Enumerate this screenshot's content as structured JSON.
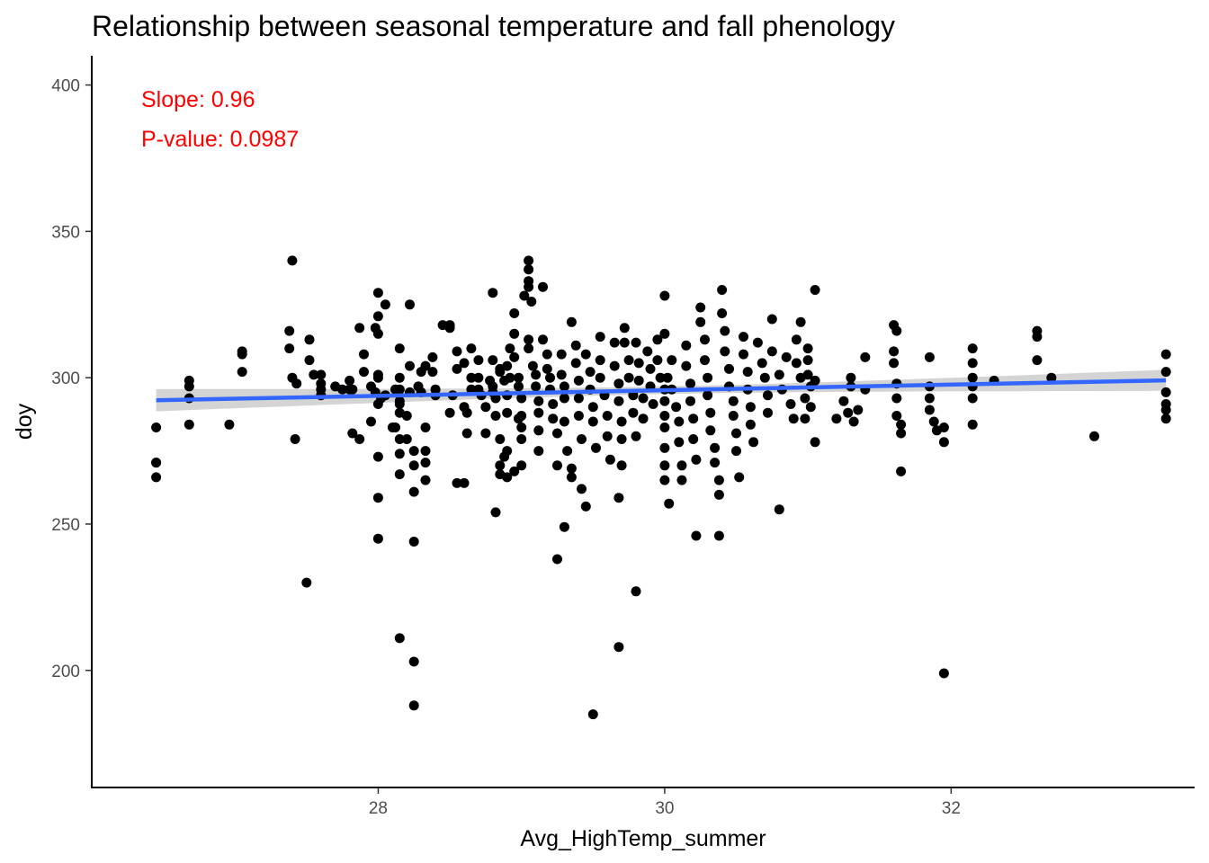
{
  "chart_data": {
    "type": "scatter",
    "title": "Relationship between seasonal temperature and fall phenology",
    "xlabel": "Avg_HighTemp_summer",
    "ylabel": "doy",
    "xlim": [
      26.0,
      33.7
    ],
    "ylim": [
      160,
      410
    ],
    "x_ticks": [
      28,
      30,
      32
    ],
    "y_ticks": [
      200,
      250,
      300,
      350,
      400
    ],
    "grid": false,
    "annotations": [
      {
        "text": "Slope: 0.96",
        "color": "#ff0000"
      },
      {
        "text": "P-value: 0.0987",
        "color": "#ff0000"
      }
    ],
    "fit_line": {
      "x": [
        26.45,
        33.5
      ],
      "y": [
        292.3,
        299.1
      ],
      "color": "#3366ff",
      "ci_color": "#cccccc",
      "ci_half_width_ends": [
        3.8,
        3.6
      ],
      "ci_half_width_mid": 1.3
    },
    "points": [
      [
        26.45,
        283
      ],
      [
        26.45,
        271
      ],
      [
        26.45,
        271
      ],
      [
        26.45,
        266
      ],
      [
        26.68,
        299
      ],
      [
        26.68,
        297
      ],
      [
        26.68,
        293
      ],
      [
        26.68,
        284
      ],
      [
        26.96,
        284
      ],
      [
        27.05,
        309
      ],
      [
        27.05,
        308
      ],
      [
        27.05,
        302
      ],
      [
        27.4,
        340
      ],
      [
        27.38,
        316
      ],
      [
        27.38,
        310
      ],
      [
        27.4,
        300
      ],
      [
        27.43,
        298
      ],
      [
        27.42,
        279
      ],
      [
        27.5,
        230
      ],
      [
        27.52,
        313
      ],
      [
        27.52,
        306
      ],
      [
        27.55,
        301
      ],
      [
        27.6,
        301
      ],
      [
        27.6,
        298
      ],
      [
        27.6,
        294
      ],
      [
        27.6,
        296
      ],
      [
        27.7,
        297
      ],
      [
        27.75,
        296
      ],
      [
        27.8,
        296
      ],
      [
        27.8,
        299
      ],
      [
        27.82,
        296
      ],
      [
        27.82,
        281
      ],
      [
        27.87,
        279
      ],
      [
        27.87,
        317
      ],
      [
        27.9,
        308
      ],
      [
        27.9,
        302
      ],
      [
        27.95,
        285
      ],
      [
        27.95,
        297
      ],
      [
        27.98,
        317
      ],
      [
        28.0,
        315
      ],
      [
        27.98,
        295
      ],
      [
        28.02,
        293
      ],
      [
        28.05,
        294
      ],
      [
        28.1,
        283
      ],
      [
        28.12,
        283
      ],
      [
        28.15,
        292
      ],
      [
        28.12,
        296
      ],
      [
        28.0,
        329
      ],
      [
        28.0,
        321
      ],
      [
        28.05,
        325
      ],
      [
        28.0,
        300
      ],
      [
        28.0,
        301
      ],
      [
        28.0,
        291
      ],
      [
        28.0,
        273
      ],
      [
        28.0,
        259
      ],
      [
        28.0,
        245
      ],
      [
        28.15,
        296
      ],
      [
        28.15,
        291
      ],
      [
        28.15,
        288
      ],
      [
        28.15,
        310
      ],
      [
        28.15,
        300
      ],
      [
        28.15,
        279
      ],
      [
        28.15,
        274
      ],
      [
        28.15,
        267
      ],
      [
        28.2,
        287
      ],
      [
        28.2,
        279
      ],
      [
        28.15,
        211
      ],
      [
        28.25,
        203
      ],
      [
        28.25,
        188
      ],
      [
        28.25,
        244
      ],
      [
        28.25,
        261
      ],
      [
        28.25,
        270
      ],
      [
        28.25,
        275
      ],
      [
        28.22,
        325
      ],
      [
        28.22,
        304
      ],
      [
        28.22,
        295
      ],
      [
        28.28,
        297
      ],
      [
        28.3,
        295
      ],
      [
        28.3,
        302
      ],
      [
        28.33,
        304
      ],
      [
        28.33,
        283
      ],
      [
        28.33,
        275
      ],
      [
        28.33,
        265
      ],
      [
        28.33,
        271
      ],
      [
        28.38,
        307
      ],
      [
        28.38,
        302
      ],
      [
        28.4,
        296
      ],
      [
        28.4,
        294
      ],
      [
        28.45,
        318
      ],
      [
        28.5,
        318
      ],
      [
        28.5,
        317
      ],
      [
        28.55,
        309
      ],
      [
        28.55,
        303
      ],
      [
        28.52,
        294
      ],
      [
        28.5,
        288
      ],
      [
        28.55,
        264
      ],
      [
        28.6,
        264
      ],
      [
        28.6,
        290
      ],
      [
        28.62,
        288
      ],
      [
        28.62,
        281
      ],
      [
        28.6,
        305
      ],
      [
        28.65,
        310
      ],
      [
        28.65,
        300
      ],
      [
        28.65,
        296
      ],
      [
        28.7,
        300
      ],
      [
        28.7,
        306
      ],
      [
        28.7,
        296
      ],
      [
        28.72,
        294
      ],
      [
        28.75,
        290
      ],
      [
        28.75,
        281
      ],
      [
        28.78,
        299
      ],
      [
        28.8,
        297
      ],
      [
        28.8,
        295
      ],
      [
        28.82,
        293
      ],
      [
        28.82,
        287
      ],
      [
        28.85,
        279
      ],
      [
        28.8,
        329
      ],
      [
        28.8,
        306
      ],
      [
        28.85,
        303
      ],
      [
        28.85,
        302
      ],
      [
        28.88,
        299
      ],
      [
        28.9,
        304
      ],
      [
        28.9,
        294
      ],
      [
        28.82,
        254
      ],
      [
        28.85,
        267
      ],
      [
        28.85,
        270
      ],
      [
        28.88,
        273
      ],
      [
        28.9,
        288
      ],
      [
        28.9,
        275
      ],
      [
        28.92,
        310
      ],
      [
        28.92,
        300
      ],
      [
        28.95,
        322
      ],
      [
        28.95,
        315
      ],
      [
        28.95,
        307
      ],
      [
        28.98,
        300
      ],
      [
        28.98,
        297
      ],
      [
        29.0,
        293
      ],
      [
        29.0,
        287
      ],
      [
        29.0,
        283
      ],
      [
        29.0,
        279
      ],
      [
        28.95,
        268
      ],
      [
        29.0,
        270
      ],
      [
        28.9,
        266
      ],
      [
        28.98,
        286
      ],
      [
        29.05,
        340
      ],
      [
        29.05,
        337
      ],
      [
        29.05,
        333
      ],
      [
        29.05,
        331
      ],
      [
        29.02,
        328
      ],
      [
        29.07,
        326
      ],
      [
        29.05,
        313
      ],
      [
        29.05,
        310
      ],
      [
        29.08,
        304
      ],
      [
        29.1,
        301
      ],
      [
        29.1,
        297
      ],
      [
        29.12,
        292
      ],
      [
        29.12,
        288
      ],
      [
        29.12,
        282
      ],
      [
        29.12,
        275
      ],
      [
        29.15,
        331
      ],
      [
        29.15,
        313
      ],
      [
        29.18,
        308
      ],
      [
        29.18,
        303
      ],
      [
        29.2,
        300
      ],
      [
        29.2,
        296
      ],
      [
        29.22,
        291
      ],
      [
        29.22,
        286
      ],
      [
        29.25,
        281
      ],
      [
        29.25,
        270
      ],
      [
        29.28,
        308
      ],
      [
        29.28,
        301
      ],
      [
        29.3,
        297
      ],
      [
        29.3,
        293
      ],
      [
        29.3,
        285
      ],
      [
        29.32,
        275
      ],
      [
        29.35,
        269
      ],
      [
        29.35,
        266
      ],
      [
        29.3,
        249
      ],
      [
        29.25,
        238
      ],
      [
        29.35,
        319
      ],
      [
        29.38,
        311
      ],
      [
        29.38,
        305
      ],
      [
        29.4,
        299
      ],
      [
        29.4,
        293
      ],
      [
        29.4,
        287
      ],
      [
        29.42,
        279
      ],
      [
        29.42,
        262
      ],
      [
        29.45,
        256
      ],
      [
        29.45,
        308
      ],
      [
        29.48,
        302
      ],
      [
        29.48,
        296
      ],
      [
        29.5,
        290
      ],
      [
        29.5,
        285
      ],
      [
        29.52,
        276
      ],
      [
        29.5,
        185
      ],
      [
        29.55,
        314
      ],
      [
        29.55,
        306
      ],
      [
        29.55,
        300
      ],
      [
        29.58,
        294
      ],
      [
        29.6,
        287
      ],
      [
        29.6,
        280
      ],
      [
        29.62,
        272
      ],
      [
        29.65,
        312
      ],
      [
        29.65,
        304
      ],
      [
        29.68,
        298
      ],
      [
        29.68,
        292
      ],
      [
        29.7,
        285
      ],
      [
        29.7,
        279
      ],
      [
        29.7,
        270
      ],
      [
        29.68,
        259
      ],
      [
        29.68,
        208
      ],
      [
        29.72,
        317
      ],
      [
        29.72,
        312
      ],
      [
        29.75,
        306
      ],
      [
        29.75,
        300
      ],
      [
        29.78,
        294
      ],
      [
        29.78,
        288
      ],
      [
        29.8,
        280
      ],
      [
        29.8,
        227
      ],
      [
        29.8,
        312
      ],
      [
        29.82,
        305
      ],
      [
        29.82,
        299
      ],
      [
        29.85,
        293
      ],
      [
        29.85,
        286
      ],
      [
        29.88,
        309
      ],
      [
        29.9,
        303
      ],
      [
        29.9,
        297
      ],
      [
        29.92,
        291
      ],
      [
        29.95,
        313
      ],
      [
        29.95,
        306
      ],
      [
        29.97,
        300
      ],
      [
        30.0,
        328
      ],
      [
        30.0,
        315
      ],
      [
        30.0,
        296
      ],
      [
        30.0,
        292
      ],
      [
        30.0,
        287
      ],
      [
        30.0,
        283
      ],
      [
        30.0,
        276
      ],
      [
        30.0,
        270
      ],
      [
        30.0,
        265
      ],
      [
        30.02,
        300
      ],
      [
        30.03,
        257
      ],
      [
        30.05,
        306
      ],
      [
        30.05,
        296
      ],
      [
        30.08,
        290
      ],
      [
        30.1,
        285
      ],
      [
        30.1,
        278
      ],
      [
        30.12,
        270
      ],
      [
        30.12,
        265
      ],
      [
        30.15,
        311
      ],
      [
        30.15,
        304
      ],
      [
        30.18,
        298
      ],
      [
        30.18,
        292
      ],
      [
        30.2,
        286
      ],
      [
        30.2,
        279
      ],
      [
        30.22,
        272
      ],
      [
        30.22,
        246
      ],
      [
        30.25,
        324
      ],
      [
        30.25,
        319
      ],
      [
        30.28,
        313
      ],
      [
        30.28,
        306
      ],
      [
        30.3,
        300
      ],
      [
        30.3,
        294
      ],
      [
        30.32,
        288
      ],
      [
        30.32,
        282
      ],
      [
        30.35,
        276
      ],
      [
        30.35,
        271
      ],
      [
        30.38,
        265
      ],
      [
        30.38,
        260
      ],
      [
        30.38,
        246
      ],
      [
        30.4,
        330
      ],
      [
        30.4,
        322
      ],
      [
        30.42,
        316
      ],
      [
        30.42,
        309
      ],
      [
        30.45,
        303
      ],
      [
        30.45,
        297
      ],
      [
        30.48,
        292
      ],
      [
        30.48,
        287
      ],
      [
        30.5,
        281
      ],
      [
        30.5,
        275
      ],
      [
        30.52,
        266
      ],
      [
        30.55,
        314
      ],
      [
        30.55,
        308
      ],
      [
        30.58,
        302
      ],
      [
        30.58,
        296
      ],
      [
        30.6,
        290
      ],
      [
        30.6,
        284
      ],
      [
        30.62,
        278
      ],
      [
        30.65,
        312
      ],
      [
        30.68,
        305
      ],
      [
        30.7,
        300
      ],
      [
        30.72,
        294
      ],
      [
        30.72,
        288
      ],
      [
        30.75,
        320
      ],
      [
        30.75,
        309
      ],
      [
        30.8,
        301
      ],
      [
        30.82,
        296
      ],
      [
        30.85,
        307
      ],
      [
        30.8,
        255
      ],
      [
        30.88,
        291
      ],
      [
        30.9,
        286
      ],
      [
        30.92,
        313
      ],
      [
        30.92,
        305
      ],
      [
        30.95,
        319
      ],
      [
        30.95,
        300
      ],
      [
        30.98,
        293
      ],
      [
        30.98,
        286
      ],
      [
        31.0,
        310
      ],
      [
        31.0,
        306
      ],
      [
        31.0,
        301
      ],
      [
        31.02,
        297
      ],
      [
        31.02,
        290
      ],
      [
        31.05,
        330
      ],
      [
        31.05,
        299
      ],
      [
        31.05,
        278
      ],
      [
        31.2,
        286
      ],
      [
        31.25,
        292
      ],
      [
        31.28,
        288
      ],
      [
        31.3,
        300
      ],
      [
        31.3,
        297
      ],
      [
        31.32,
        285
      ],
      [
        31.35,
        289
      ],
      [
        31.4,
        307
      ],
      [
        31.4,
        296
      ],
      [
        31.6,
        318
      ],
      [
        31.62,
        316
      ],
      [
        31.6,
        309
      ],
      [
        31.6,
        305
      ],
      [
        31.62,
        298
      ],
      [
        31.62,
        293
      ],
      [
        31.62,
        287
      ],
      [
        31.65,
        284
      ],
      [
        31.65,
        281
      ],
      [
        31.65,
        268
      ],
      [
        31.85,
        307
      ],
      [
        31.85,
        297
      ],
      [
        31.85,
        293
      ],
      [
        31.85,
        289
      ],
      [
        31.88,
        285
      ],
      [
        31.9,
        282
      ],
      [
        31.95,
        283
      ],
      [
        31.95,
        278
      ],
      [
        31.95,
        199
      ],
      [
        32.15,
        310
      ],
      [
        32.15,
        305
      ],
      [
        32.15,
        300
      ],
      [
        32.15,
        297
      ],
      [
        32.15,
        293
      ],
      [
        32.15,
        284
      ],
      [
        32.3,
        299
      ],
      [
        32.6,
        316
      ],
      [
        32.6,
        314
      ],
      [
        32.6,
        306
      ],
      [
        32.7,
        300
      ],
      [
        33.0,
        280
      ],
      [
        33.5,
        308
      ],
      [
        33.5,
        302
      ],
      [
        33.5,
        295
      ],
      [
        33.5,
        291
      ],
      [
        33.5,
        289
      ],
      [
        33.5,
        286
      ]
    ]
  }
}
